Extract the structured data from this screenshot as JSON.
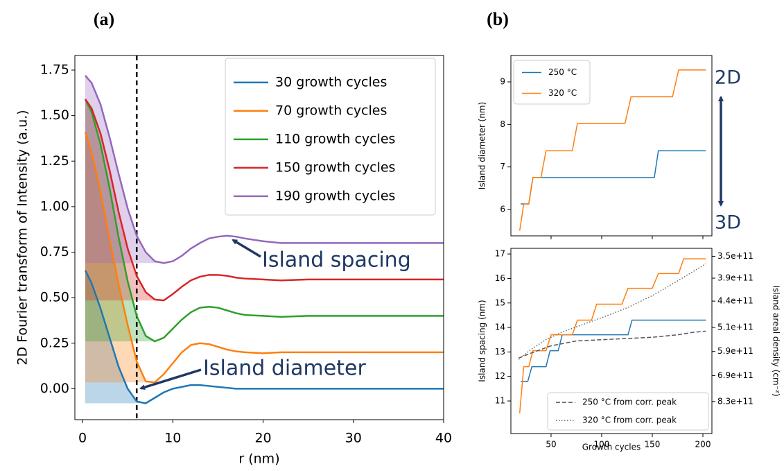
{
  "chart_data": [
    {
      "type": "line",
      "label": "(a)",
      "xlabel": "r (nm)",
      "ylabel": "2D Fourier transform of Intensity (a.u.)",
      "xlim": [
        -0.85,
        40
      ],
      "ylim": [
        -0.17,
        1.83
      ],
      "xticks": [
        0,
        10,
        20,
        30,
        40
      ],
      "yticks": [
        {
          "value": 0,
          "label": "0.00"
        },
        {
          "value": 0.25,
          "label": "0.25"
        },
        {
          "value": 0.5,
          "label": "0.50"
        },
        {
          "value": 0.75,
          "label": "0.75"
        },
        {
          "value": 1,
          "label": "1.00"
        },
        {
          "value": 1.25,
          "label": "1.25"
        },
        {
          "value": 1.5,
          "label": "1.50"
        },
        {
          "value": 1.75,
          "label": "1.75"
        }
      ],
      "vline": 6,
      "legend": "upper right",
      "annotations": [
        "Island spacing",
        "Island diameter"
      ],
      "x": [
        0.3,
        1,
        2,
        3,
        4,
        5,
        6,
        7,
        8,
        9,
        10,
        11,
        12,
        13,
        14,
        15,
        16,
        17,
        18,
        20,
        22,
        25,
        30,
        35,
        40
      ],
      "series": [
        {
          "name": "30 growth cycles",
          "color": "#1f77b4",
          "values": [
            0.65,
            0.58,
            0.44,
            0.28,
            0.12,
            0.0,
            -0.07,
            -0.08,
            -0.05,
            -0.02,
            0.0,
            0.01,
            0.02,
            0.02,
            0.015,
            0.01,
            0.005,
            0.0,
            0.0,
            0.0,
            0.0,
            0.0,
            0.0,
            0.0,
            0.0
          ]
        },
        {
          "name": "70 growth cycles",
          "color": "#ff7f0e",
          "values": [
            1.41,
            1.3,
            1.08,
            0.82,
            0.57,
            0.35,
            0.15,
            0.04,
            0.035,
            0.08,
            0.14,
            0.2,
            0.24,
            0.25,
            0.245,
            0.23,
            0.215,
            0.205,
            0.2,
            0.195,
            0.2,
            0.2,
            0.2,
            0.2,
            0.2
          ]
        },
        {
          "name": "110 growth cycles",
          "color": "#2ca02c",
          "values": [
            1.59,
            1.52,
            1.34,
            1.1,
            0.83,
            0.59,
            0.4,
            0.29,
            0.26,
            0.28,
            0.33,
            0.38,
            0.42,
            0.445,
            0.45,
            0.445,
            0.43,
            0.415,
            0.405,
            0.4,
            0.395,
            0.4,
            0.4,
            0.4,
            0.4
          ]
        },
        {
          "name": "150 growth cycles",
          "color": "#d62728",
          "values": [
            1.59,
            1.54,
            1.4,
            1.2,
            0.97,
            0.77,
            0.62,
            0.53,
            0.49,
            0.485,
            0.52,
            0.56,
            0.595,
            0.615,
            0.625,
            0.625,
            0.62,
            0.61,
            0.605,
            0.6,
            0.595,
            0.6,
            0.6,
            0.6,
            0.6
          ]
        },
        {
          "name": "190 growth cycles",
          "color": "#9467bd",
          "values": [
            1.72,
            1.68,
            1.56,
            1.38,
            1.18,
            0.99,
            0.84,
            0.75,
            0.7,
            0.69,
            0.7,
            0.73,
            0.77,
            0.8,
            0.825,
            0.835,
            0.84,
            0.835,
            0.825,
            0.81,
            0.8,
            0.8,
            0.8,
            0.8,
            0.8
          ]
        }
      ]
    },
    {
      "type": "line",
      "label": "(b)",
      "ylabel": "Island diameter (nm)",
      "xlim": [
        10.3,
        208.9
      ],
      "ylim": [
        5.38,
        9.62
      ],
      "yticks": [
        6,
        7,
        8,
        9
      ],
      "legend": "upper left",
      "annotations": [
        "2D",
        "3D"
      ],
      "series": [
        {
          "name": "250 °C",
          "color": "#1f77b4",
          "x": [
            20,
            28,
            32,
            152,
            156,
            203
          ],
          "values": [
            6.13,
            6.13,
            6.75,
            6.75,
            7.38,
            7.38
          ]
        },
        {
          "name": "320 °C",
          "color": "#ff7f0e",
          "x": [
            19,
            23,
            28,
            32,
            40,
            45,
            71,
            76,
            123,
            129,
            170,
            176,
            203
          ],
          "values": [
            5.5,
            6.13,
            6.13,
            6.75,
            6.75,
            7.38,
            7.38,
            8.02,
            8.02,
            8.65,
            8.65,
            9.28,
            9.28
          ]
        }
      ]
    },
    {
      "type": "line",
      "xlabel": "Growth cycles",
      "ylabel": "Island spacing (nm)",
      "y2label": "Island areal density (cm⁻²)",
      "xlim": [
        10.3,
        208.9
      ],
      "ylim": [
        9.67,
        17.23
      ],
      "xticks": [
        50,
        100,
        150,
        200
      ],
      "yticks": [
        11,
        12,
        13,
        14,
        15,
        16,
        17
      ],
      "y2scale": "inverse_square",
      "y2lim": [
        1069400000000,
        336800000000
      ],
      "y2ticks": [
        {
          "value": 350000000000,
          "label": "3.5e+11"
        },
        {
          "value": 390000000000,
          "label": "3.9e+11"
        },
        {
          "value": 440000000000,
          "label": "4.4e+11"
        },
        {
          "value": 510000000000,
          "label": "5.1e+11"
        },
        {
          "value": 590000000000,
          "label": "5.9e+11"
        },
        {
          "value": 690000000000,
          "label": "6.9e+11"
        },
        {
          "value": 830000000000,
          "label": "8.3e+11"
        }
      ],
      "legend": "lower right",
      "series": [
        {
          "color": "#1f77b4",
          "x": [
            20,
            27,
            31,
            45,
            49,
            57,
            61,
            126,
            130,
            203
          ],
          "values": [
            11.8,
            11.8,
            12.4,
            12.4,
            13.05,
            13.05,
            13.7,
            13.7,
            14.3,
            14.3
          ]
        },
        {
          "color": "#ff7f0e",
          "x": [
            19,
            23,
            28,
            32,
            45,
            50,
            71,
            76,
            90,
            95,
            120,
            126,
            150,
            156,
            176,
            181,
            203
          ],
          "values": [
            10.5,
            12.4,
            12.4,
            13.05,
            13.05,
            13.7,
            13.7,
            14.3,
            14.3,
            14.95,
            14.95,
            15.6,
            15.6,
            16.2,
            16.2,
            16.8,
            16.8
          ]
        },
        {
          "name": "250 °C from corr. peak",
          "color": "#555555",
          "style": "dashed",
          "x": [
            18,
            30,
            50,
            75,
            100,
            125,
            150,
            175,
            190,
            203
          ],
          "values": [
            12.75,
            12.95,
            13.25,
            13.45,
            13.5,
            13.55,
            13.6,
            13.7,
            13.8,
            13.85
          ]
        },
        {
          "name": "320 °C from corr. peak",
          "color": "#666666",
          "style": "dotted",
          "x": [
            18,
            30,
            45,
            60,
            80,
            100,
            125,
            150,
            175,
            203
          ],
          "values": [
            12.7,
            13.1,
            13.5,
            13.8,
            14.1,
            14.4,
            14.8,
            15.3,
            15.9,
            16.6
          ]
        }
      ]
    }
  ]
}
